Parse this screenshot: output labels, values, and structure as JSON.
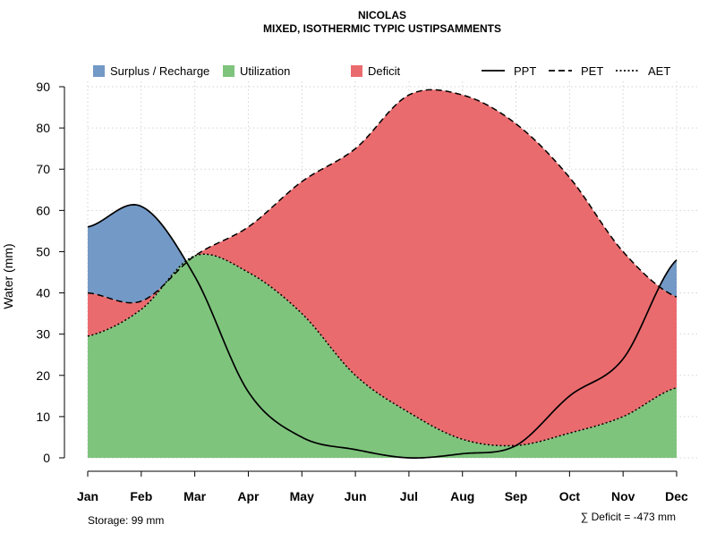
{
  "chart_data": {
    "type": "area",
    "title": "NICOLAS",
    "subtitle": "MIXED, ISOTHERMIC TYPIC USTIPSAMMENTS",
    "xlabel": "",
    "ylabel": "Water (mm)",
    "ylim": [
      0,
      90
    ],
    "yticks": [
      0,
      10,
      20,
      30,
      40,
      50,
      60,
      70,
      80,
      90
    ],
    "grid": true,
    "legend_position": "top",
    "categories": [
      "Jan",
      "Feb",
      "Mar",
      "Apr",
      "May",
      "Jun",
      "Jul",
      "Aug",
      "Sep",
      "Oct",
      "Nov",
      "Dec"
    ],
    "series": [
      {
        "name": "PPT",
        "style": "solid",
        "values": [
          56,
          61,
          44,
          16,
          5,
          2,
          0,
          1,
          3,
          15,
          24,
          48
        ]
      },
      {
        "name": "PET",
        "style": "dashed",
        "values": [
          40,
          38,
          49,
          56,
          67,
          75,
          88,
          88,
          81,
          68,
          50,
          39
        ]
      },
      {
        "name": "AET",
        "style": "dotted",
        "values": [
          29.5,
          36,
          49,
          45,
          35,
          20,
          11,
          4.5,
          3,
          6,
          10,
          17
        ]
      }
    ],
    "areas": [
      {
        "name": "Surplus / Recharge",
        "color": "#7399c6",
        "between": [
          "PET",
          "PPT"
        ]
      },
      {
        "name": "Utilization",
        "color": "#7fc47d",
        "between": [
          "zero",
          "AET"
        ]
      },
      {
        "name": "Deficit",
        "color": "#ea6b6e",
        "between": [
          "AET",
          "PET"
        ]
      }
    ],
    "legend": [
      {
        "label": "Surplus / Recharge",
        "kind": "fill",
        "color": "#7399c6"
      },
      {
        "label": "Utilization",
        "kind": "fill",
        "color": "#7fc47d"
      },
      {
        "label": "Deficit",
        "kind": "fill",
        "color": "#ea6b6e"
      },
      {
        "label": "PPT",
        "kind": "line",
        "style": "solid"
      },
      {
        "label": "PET",
        "kind": "line",
        "style": "dashed"
      },
      {
        "label": "AET",
        "kind": "line",
        "style": "dotted"
      }
    ],
    "annotations": {
      "storage": "Storage: 99 mm",
      "deficit": "∑ Deficit = -473 mm"
    }
  }
}
